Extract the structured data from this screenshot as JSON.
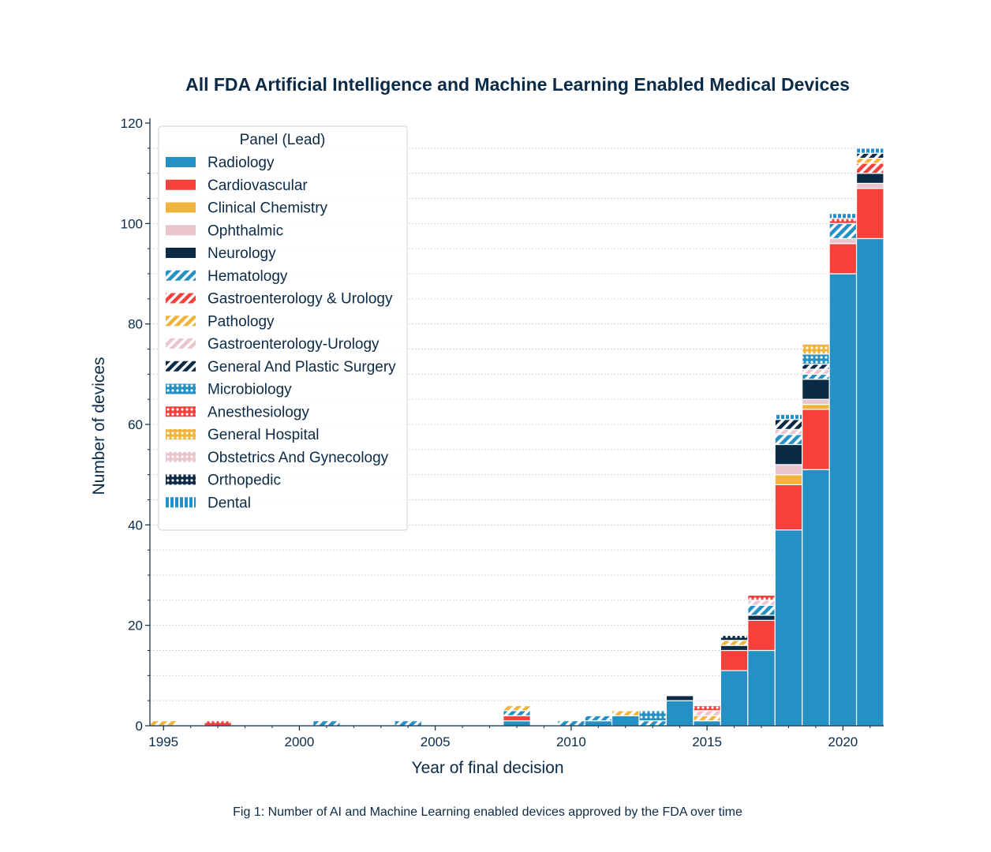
{
  "chart_data": {
    "type": "bar",
    "stacked": true,
    "title": "All FDA Artificial Intelligence and Machine Learning Enabled Medical Devices",
    "xlabel": "Year of final decision",
    "ylabel": "Number of devices",
    "ylim": [
      0,
      120
    ],
    "xlim": [
      1994.5,
      2021.5
    ],
    "x_ticks": [
      1995,
      2000,
      2005,
      2010,
      2015,
      2020
    ],
    "y_ticks": [
      0,
      20,
      40,
      60,
      80,
      100,
      120
    ],
    "grid": true,
    "legend": {
      "title": "Panel (Lead)",
      "position": "top-left"
    },
    "categories": [
      1995,
      1997,
      2001,
      2004,
      2008,
      2010,
      2011,
      2012,
      2013,
      2014,
      2015,
      2016,
      2017,
      2018,
      2019,
      2020,
      2021
    ],
    "series": [
      {
        "name": "Radiology",
        "color": "#2590c4",
        "pattern": "solid",
        "values": [
          0,
          0,
          0,
          0,
          1,
          0,
          1,
          2,
          0,
          5,
          1,
          11,
          15,
          39,
          51,
          90,
          97
        ]
      },
      {
        "name": "Cardiovascular",
        "color": "#f5403b",
        "pattern": "solid",
        "values": [
          0,
          0,
          0,
          0,
          1,
          0,
          0,
          0,
          0,
          0,
          0,
          4,
          6,
          9,
          12,
          6,
          10
        ]
      },
      {
        "name": "Clinical Chemistry",
        "color": "#f0b43c",
        "pattern": "solid",
        "values": [
          0,
          0,
          0,
          0,
          0,
          0,
          0,
          0,
          0,
          0,
          0,
          0,
          0,
          2,
          1,
          0,
          0
        ]
      },
      {
        "name": "Ophthalmic",
        "color": "#ebc5cd",
        "pattern": "solid",
        "values": [
          0,
          0,
          0,
          0,
          0,
          0,
          0,
          0,
          0,
          0,
          0,
          0,
          0,
          2,
          1,
          1,
          1
        ]
      },
      {
        "name": "Neurology",
        "color": "#0b2a46",
        "pattern": "solid",
        "values": [
          0,
          0,
          0,
          0,
          0,
          0,
          0,
          0,
          0,
          1,
          0,
          1,
          1,
          4,
          4,
          0,
          2
        ]
      },
      {
        "name": "Hematology",
        "color": "#2590c4",
        "pattern": "hatch",
        "values": [
          0,
          0,
          1,
          1,
          1,
          1,
          1,
          0,
          1,
          0,
          0,
          0,
          2,
          2,
          1,
          3,
          0
        ]
      },
      {
        "name": "Gastroenterology & Urology",
        "color": "#f5403b",
        "pattern": "hatch",
        "values": [
          0,
          0,
          0,
          0,
          0,
          0,
          0,
          0,
          0,
          0,
          0,
          0,
          0,
          0,
          0,
          0,
          2
        ]
      },
      {
        "name": "Pathology",
        "color": "#f0b43c",
        "pattern": "hatch",
        "values": [
          1,
          0,
          0,
          0,
          1,
          0,
          0,
          1,
          0,
          0,
          1,
          1,
          0,
          0,
          0,
          0,
          1
        ]
      },
      {
        "name": "Gastroenterology-Urology",
        "color": "#ebc5cd",
        "pattern": "hatch",
        "values": [
          0,
          0,
          0,
          0,
          0,
          0,
          0,
          0,
          0,
          0,
          1,
          0,
          1,
          1,
          1,
          0,
          0
        ]
      },
      {
        "name": "General And Plastic Surgery",
        "color": "#0b2a46",
        "pattern": "hatch",
        "values": [
          0,
          0,
          0,
          0,
          0,
          0,
          0,
          0,
          0,
          0,
          0,
          0,
          0,
          2,
          1,
          0,
          1
        ]
      },
      {
        "name": "Microbiology",
        "color": "#2590c4",
        "pattern": "dots",
        "values": [
          0,
          0,
          0,
          0,
          0,
          0,
          0,
          0,
          2,
          0,
          0,
          0,
          0,
          0,
          2,
          0,
          0
        ]
      },
      {
        "name": "Anesthesiology",
        "color": "#f5403b",
        "pattern": "dots",
        "values": [
          0,
          1,
          0,
          0,
          0,
          0,
          0,
          0,
          0,
          0,
          1,
          0,
          1,
          0,
          0,
          1,
          0
        ]
      },
      {
        "name": "General Hospital",
        "color": "#f0b43c",
        "pattern": "dots",
        "values": [
          0,
          0,
          0,
          0,
          0,
          0,
          0,
          0,
          0,
          0,
          0,
          0,
          0,
          0,
          2,
          0,
          0
        ]
      },
      {
        "name": "Obstetrics And Gynecology",
        "color": "#ebc5cd",
        "pattern": "dots",
        "values": [
          0,
          0,
          0,
          0,
          0,
          0,
          0,
          0,
          0,
          0,
          0,
          0,
          0,
          0,
          0,
          0,
          0
        ]
      },
      {
        "name": "Orthopedic",
        "color": "#0b2a46",
        "pattern": "dots",
        "values": [
          0,
          0,
          0,
          0,
          0,
          0,
          0,
          0,
          0,
          0,
          0,
          1,
          0,
          0,
          0,
          0,
          0
        ]
      },
      {
        "name": "Dental",
        "color": "#2590c4",
        "pattern": "stripes",
        "values": [
          0,
          0,
          0,
          0,
          0,
          0,
          0,
          0,
          0,
          0,
          0,
          0,
          0,
          1,
          0,
          1,
          1
        ]
      }
    ],
    "caption": "Fig 1: Number of AI and Machine Learning enabled devices approved by the FDA over time"
  }
}
